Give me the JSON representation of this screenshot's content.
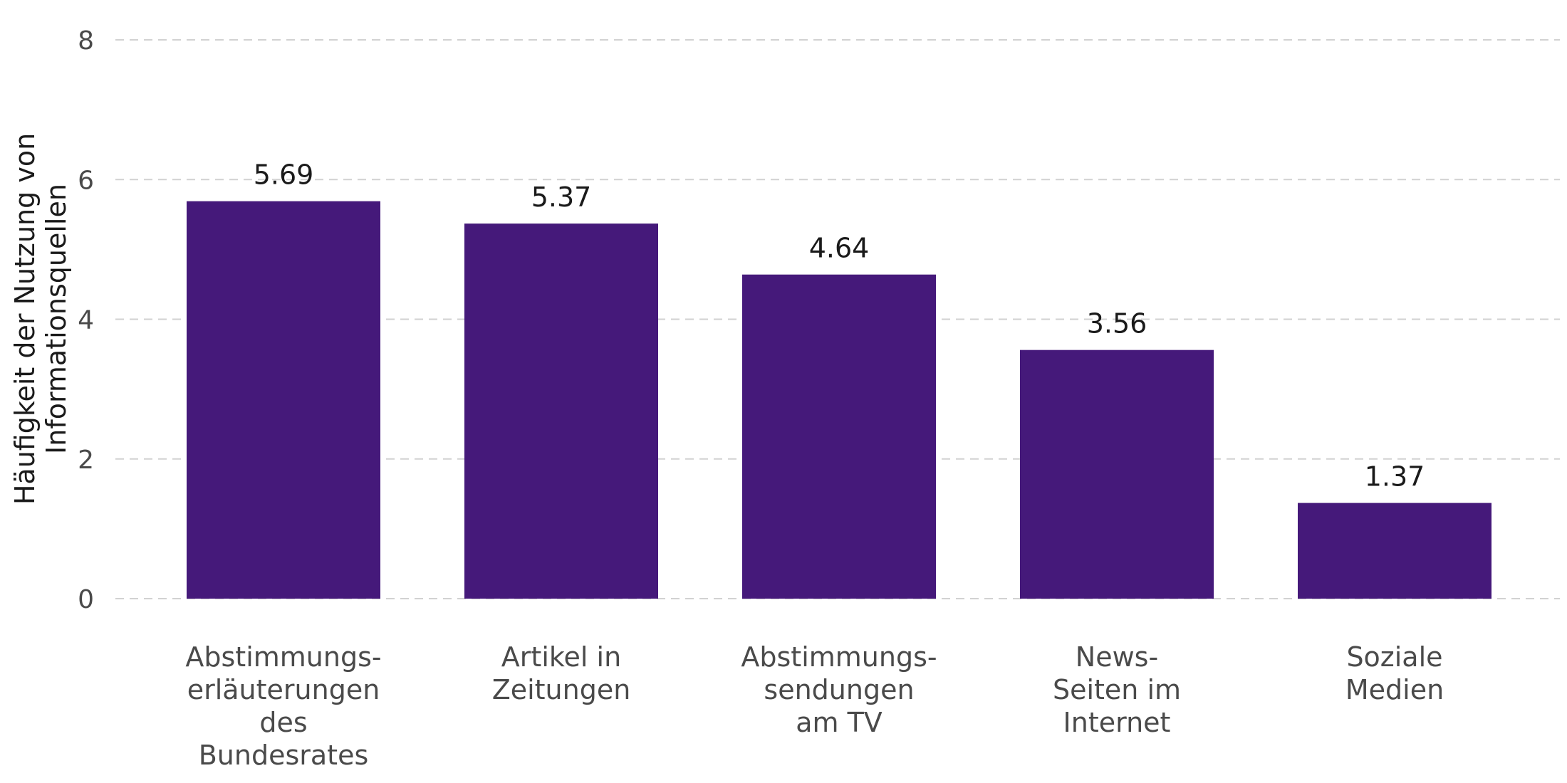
{
  "chart_data": {
    "type": "bar",
    "categories": [
      [
        "Abstimmungs-",
        "erläuterungen",
        "des",
        "Bundesrates"
      ],
      [
        "Artikel in",
        "Zeitungen"
      ],
      [
        "Abstimmungs-",
        "sendungen",
        "am TV"
      ],
      [
        "News-",
        "Seiten im",
        "Internet"
      ],
      [
        "Soziale",
        "Medien"
      ]
    ],
    "values": [
      5.69,
      5.37,
      4.64,
      3.56,
      1.37
    ],
    "value_labels": [
      "5.69",
      "5.37",
      "4.64",
      "3.56",
      "1.37"
    ],
    "ylabel": [
      "Häufigkeit der Nutzung von",
      "Informationsquellen"
    ],
    "ylim": [
      0,
      8
    ],
    "yticks": [
      0,
      2,
      4,
      6,
      8
    ],
    "grid": true,
    "bar_color": "#45197a"
  }
}
